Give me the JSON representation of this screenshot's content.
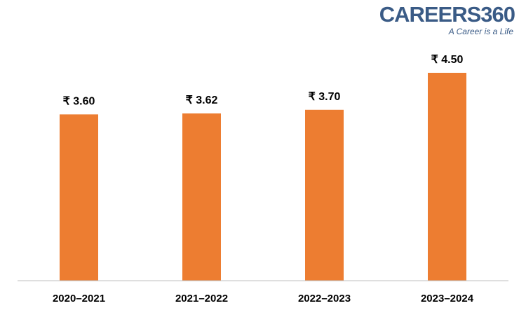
{
  "logo": {
    "name": "CAREERS360",
    "tagline": "A Career is a Life"
  },
  "colors": {
    "bar": "#ED7D31",
    "axis": "#BFBFBF",
    "logo": "#3A5B86"
  },
  "chart_data": {
    "type": "bar",
    "title": "",
    "xlabel": "",
    "ylabel": "",
    "categories": [
      "2020–2021",
      "2021–2022",
      "2022–2023",
      "2023–2024"
    ],
    "values": [
      3.6,
      3.62,
      3.7,
      4.5
    ],
    "data_labels": [
      "₹ 3.60",
      "₹ 3.62",
      "₹ 3.70",
      "₹ 4.50"
    ],
    "ylim": [
      0,
      5.3
    ],
    "grid": false,
    "legend": "none"
  }
}
